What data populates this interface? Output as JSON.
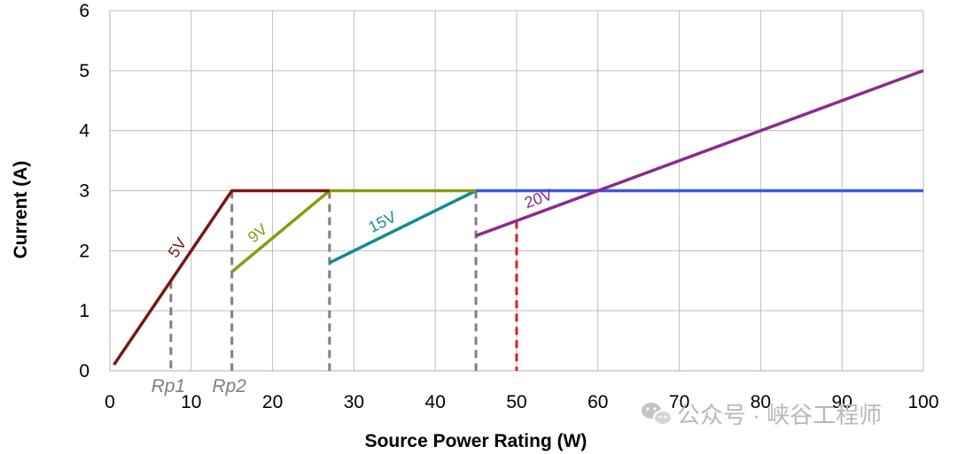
{
  "chart_data": {
    "type": "line",
    "xlabel": "Source Power Rating (W)",
    "ylabel": "Current (A)",
    "xlim": [
      0,
      100
    ],
    "ylim": [
      0,
      6
    ],
    "x_ticks": [
      0,
      10,
      20,
      30,
      40,
      50,
      60,
      70,
      80,
      90,
      100
    ],
    "y_ticks": [
      0,
      1,
      2,
      3,
      4,
      5,
      6
    ],
    "grid": true,
    "series": [
      {
        "name": "5V",
        "color": "#7b1616",
        "points": [
          [
            0.5,
            0.1
          ],
          [
            15,
            3
          ],
          [
            27,
            3
          ]
        ]
      },
      {
        "name": "9V",
        "color": "#8b9a12",
        "points": [
          [
            15,
            1.65
          ],
          [
            27,
            3
          ],
          [
            45,
            3
          ]
        ]
      },
      {
        "name": "15V",
        "color": "#148a8a",
        "points": [
          [
            27,
            1.8
          ],
          [
            45,
            3
          ]
        ]
      },
      {
        "name": "20V",
        "color": "#8b2a8f",
        "points": [
          [
            45,
            2.25
          ],
          [
            100,
            5
          ]
        ]
      },
      {
        "color": "#3b5bd6",
        "points": [
          [
            45,
            3
          ],
          [
            100,
            3
          ]
        ]
      }
    ],
    "vertical_markers": [
      {
        "x": 7.5,
        "y_top": 1.5,
        "color": "#7f7f7f",
        "label": "Rp1"
      },
      {
        "x": 15,
        "y_top": 3,
        "color": "#7f7f7f",
        "label": "Rp2"
      },
      {
        "x": 27,
        "y_top": 3,
        "color": "#7f7f7f"
      },
      {
        "x": 45,
        "y_top": 3,
        "color": "#7f7f7f"
      },
      {
        "x": 50,
        "y_top": 2.5,
        "color": "#d62020"
      }
    ]
  },
  "watermark": {
    "text": "公众号 · 峡谷工程师",
    "icon": "wechat-icon"
  }
}
